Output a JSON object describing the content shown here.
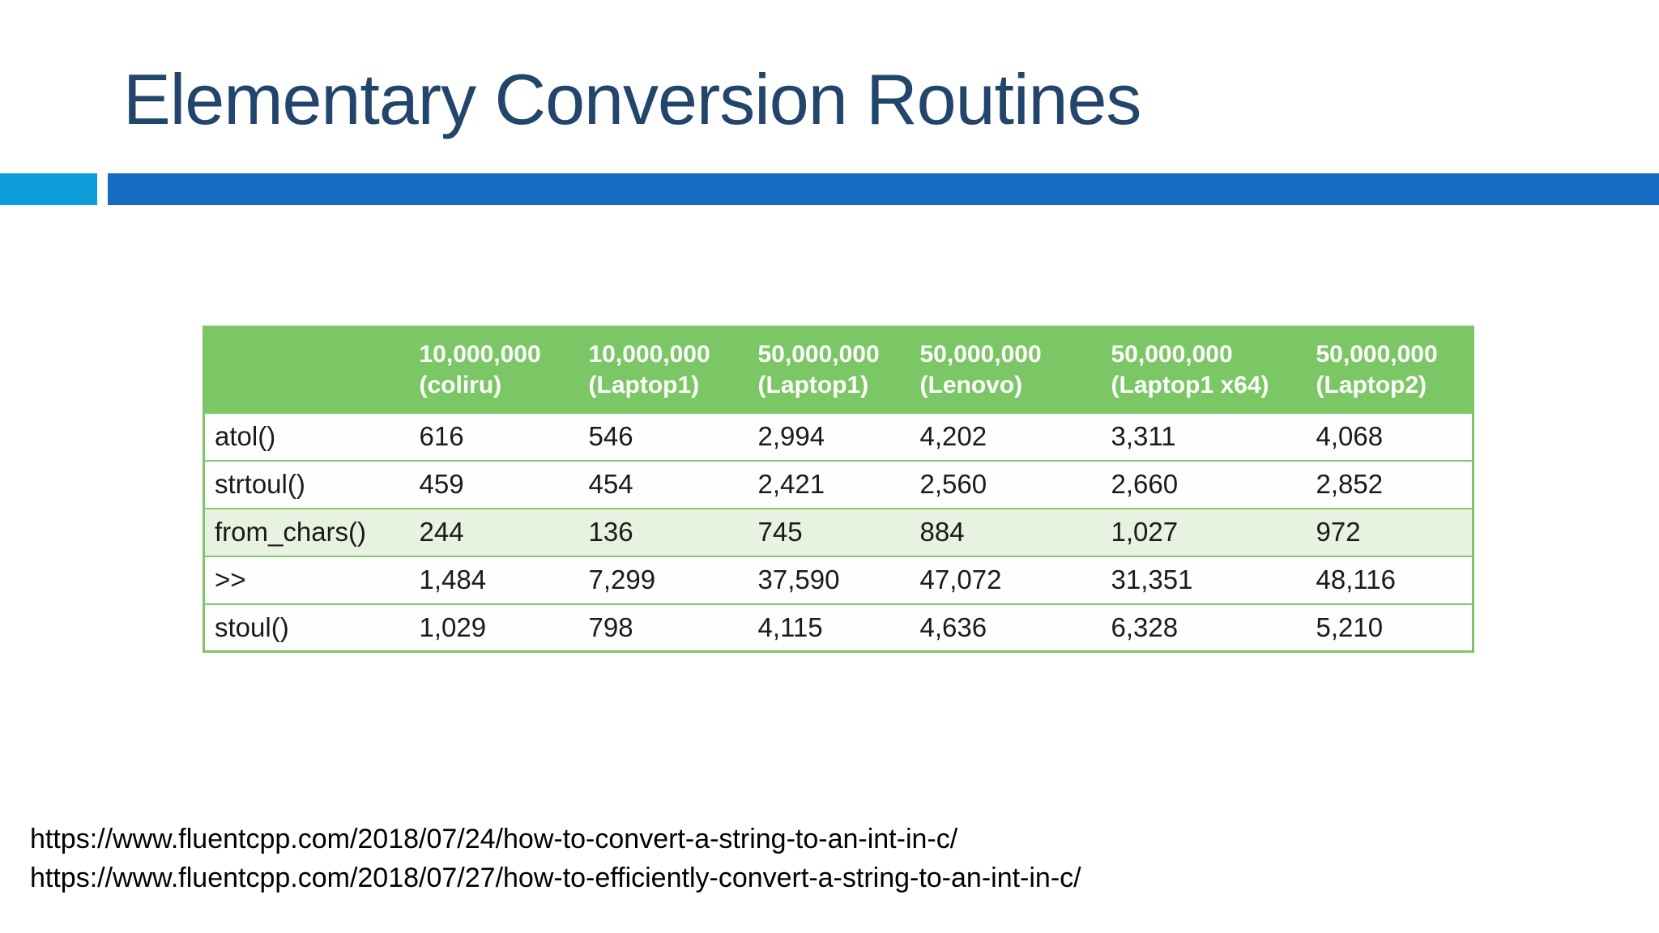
{
  "slide": {
    "title": "Elementary Conversion Routines",
    "colors": {
      "title_text": "#21456B",
      "accent_light_blue": "#0D9DDB",
      "accent_dark_blue": "#176BC2",
      "table_header_green": "#7CC765",
      "table_border_green": "#7EC569",
      "highlight_row_green": "#E7F2E0"
    },
    "table": {
      "columns": [
        {
          "line1": "10,000,000",
          "line2": "(coliru)"
        },
        {
          "line1": "10,000,000",
          "line2": "(Laptop1)"
        },
        {
          "line1": "50,000,000",
          "line2": "(Laptop1)"
        },
        {
          "line1": "50,000,000",
          "line2": "(Lenovo)"
        },
        {
          "line1": "50,000,000",
          "line2": "(Laptop1 x64)"
        },
        {
          "line1": "50,000,000",
          "line2": "(Laptop2)"
        }
      ],
      "rows": [
        {
          "label": "atol()",
          "values": [
            "616",
            "546",
            "2,994",
            "4,202",
            "3,311",
            "4,068"
          ]
        },
        {
          "label": "strtoul()",
          "values": [
            "459",
            "454",
            "2,421",
            "2,560",
            "2,660",
            "2,852"
          ]
        },
        {
          "label": "from_chars()",
          "values": [
            "244",
            "136",
            "745",
            "884",
            "1,027",
            "972"
          ],
          "highlighted": true
        },
        {
          "label": ">>",
          "values": [
            "1,484",
            "7,299",
            "37,590",
            "47,072",
            "31,351",
            "48,116"
          ]
        },
        {
          "label": "stoul()",
          "values": [
            "1,029",
            "798",
            "4,115",
            "4,636",
            "6,328",
            "5,210"
          ]
        }
      ]
    },
    "footer_links": [
      "https://www.fluentcpp.com/2018/07/24/how-to-convert-a-string-to-an-int-in-c/",
      "https://www.fluentcpp.com/2018/07/27/how-to-efficiently-convert-a-string-to-an-int-in-c/"
    ]
  }
}
